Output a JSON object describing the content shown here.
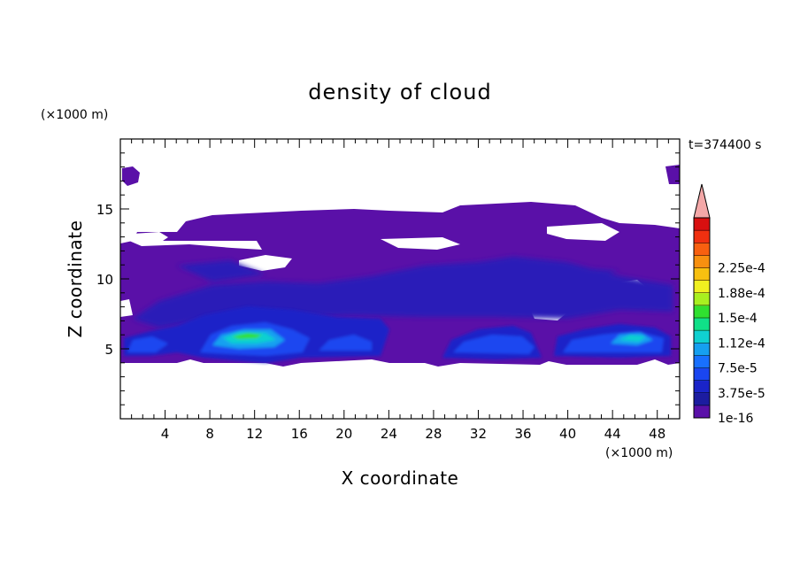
{
  "chart_data": {
    "type": "heatmap",
    "title": "density of cloud",
    "xlabel": "X coordinate",
    "ylabel": "Z coordinate",
    "x_unit": "(×1000 m)",
    "y_unit": "(×1000 m)",
    "time_label": "t=374400 s",
    "xlim": [
      0,
      50
    ],
    "ylim": [
      0,
      20
    ],
    "x_ticks": [
      4,
      8,
      12,
      16,
      20,
      24,
      28,
      32,
      36,
      40,
      44,
      48
    ],
    "y_ticks": [
      5,
      10,
      15
    ],
    "colorbar": {
      "labels": [
        "1e-16",
        "3.75e-5",
        "7.5e-5",
        "1.12e-4",
        "1.5e-4",
        "1.88e-4",
        "2.25e-4"
      ],
      "colors": [
        "#5a10a8",
        "#1c1ca0",
        "#1a24c8",
        "#1a46f0",
        "#1870ff",
        "#16a0f0",
        "#10d0d0",
        "#10e088",
        "#30e030",
        "#a8f020",
        "#f0f020",
        "#f8c010",
        "#f89010",
        "#f86010",
        "#f03010",
        "#d81010"
      ],
      "extend_color": "#f4a8a8"
    },
    "cloud_regions": [
      {
        "x": [
          0,
          50
        ],
        "z": [
          4.2,
          12.5
        ],
        "level": "1e-16"
      },
      {
        "x": [
          3,
          50
        ],
        "z": [
          12.5,
          15.2
        ],
        "level": "1e-16"
      },
      {
        "x": [
          2,
          50
        ],
        "z": [
          4.5,
          8.2
        ],
        "level": "3.75e-5"
      },
      {
        "x": [
          8,
          14
        ],
        "z": [
          5.0,
          6.4
        ],
        "level": "1.5e-4"
      },
      {
        "x": [
          43,
          48
        ],
        "z": [
          5.2,
          6.2
        ],
        "level": "1.12e-4"
      }
    ]
  }
}
